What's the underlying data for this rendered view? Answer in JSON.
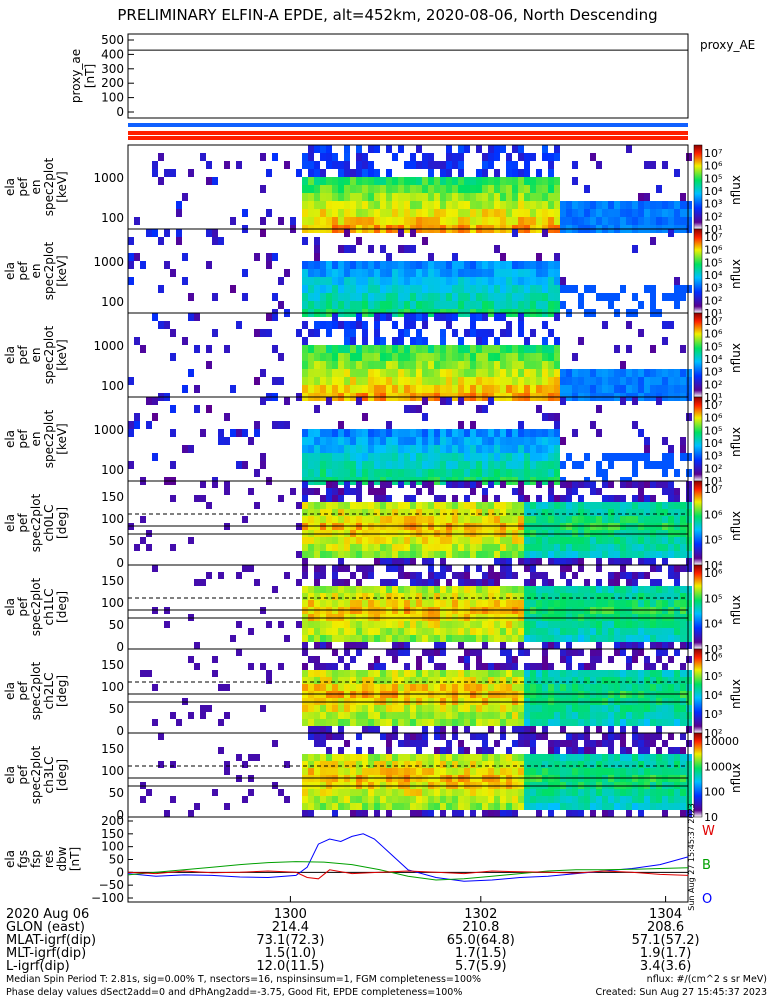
{
  "title": "PRELIMINARY ELFIN-A EPDE, alt=452km, 2020-08-06, North Descending",
  "chart_data": {
    "type": "heatmap",
    "panels": [
      {
        "id": "proxy-ae",
        "ylabel": [
          "proxy_ae",
          "[nT]"
        ],
        "yticks": [
          "500",
          "400",
          "300",
          "200",
          "100",
          "0"
        ],
        "right_label": "proxy_AE",
        "value": 430
      },
      {
        "id": "en-1",
        "ylabel": [
          "ela",
          "pef",
          "en",
          "spec2plot",
          "[keV]"
        ],
        "yticks": [
          "1000",
          "100"
        ],
        "cbar_ticks": [
          "10⁷",
          "10⁶",
          "10⁵",
          "10⁴",
          "10³",
          "10²",
          "10¹"
        ],
        "cbar_label": "nflux"
      },
      {
        "id": "en-2",
        "ylabel": [
          "ela",
          "pef",
          "en",
          "spec2plot",
          "[keV]"
        ],
        "yticks": [
          "1000",
          "100"
        ],
        "cbar_ticks": [
          "10⁷",
          "10⁶",
          "10⁵",
          "10⁴",
          "10³",
          "10²",
          "10¹"
        ],
        "cbar_label": "nflux"
      },
      {
        "id": "en-3",
        "ylabel": [
          "ela",
          "pef",
          "en",
          "spec2plot",
          "[keV]"
        ],
        "yticks": [
          "1000",
          "100"
        ],
        "cbar_ticks": [
          "10⁷",
          "10⁶",
          "10⁵",
          "10⁴",
          "10³",
          "10²",
          "10¹"
        ],
        "cbar_label": "nflux"
      },
      {
        "id": "en-4",
        "ylabel": [
          "ela",
          "pef",
          "en",
          "spec2plot",
          "[keV]"
        ],
        "yticks": [
          "1000",
          "100"
        ],
        "cbar_ticks": [
          "10⁷",
          "10⁶",
          "10⁵",
          "10⁴",
          "10³",
          "10²",
          "10¹"
        ],
        "cbar_label": "nflux"
      },
      {
        "id": "pa-0",
        "ylabel": [
          "ela",
          "pef",
          "spec2plot",
          "ch0LC",
          "[deg]"
        ],
        "yticks": [
          "150",
          "100",
          "50",
          "0"
        ],
        "cbar_ticks": [
          "10⁷",
          "10⁶",
          "10⁵",
          "10⁴"
        ],
        "cbar_label": "nflux"
      },
      {
        "id": "pa-1",
        "ylabel": [
          "ela",
          "pef",
          "spec2plot",
          "ch1LC",
          "[deg]"
        ],
        "yticks": [
          "150",
          "100",
          "50",
          "0"
        ],
        "cbar_ticks": [
          "10⁶",
          "10⁵",
          "10⁴",
          "10³"
        ],
        "cbar_label": "nflux"
      },
      {
        "id": "pa-2",
        "ylabel": [
          "ela",
          "pef",
          "spec2plot",
          "ch2LC",
          "[deg]"
        ],
        "yticks": [
          "150",
          "100",
          "50",
          "0"
        ],
        "cbar_ticks": [
          "10⁶",
          "10⁵",
          "10⁴",
          "10³",
          "10²"
        ],
        "cbar_label": "nflux"
      },
      {
        "id": "pa-3",
        "ylabel": [
          "ela",
          "pef",
          "spec2plot",
          "ch3LC",
          "[deg]"
        ],
        "yticks": [
          "150",
          "100",
          "50",
          "0"
        ],
        "cbar_ticks": [
          "10000",
          "1000",
          "100",
          "10"
        ],
        "cbar_label": "nflux"
      },
      {
        "id": "bfield",
        "ylabel": [
          "ela",
          "fgs",
          "fsp",
          "res",
          "dbw",
          "[nT]"
        ],
        "yticks": [
          "200",
          "150",
          "100",
          "50",
          "0",
          "−50",
          "−100"
        ],
        "legend": [
          {
            "name": "W",
            "color": "#e00000"
          },
          {
            "name": "B",
            "color": "#00a000"
          },
          {
            "name": "O",
            "color": "#0000ff"
          }
        ]
      }
    ],
    "x_labels": [
      "1300",
      "1302",
      "1304"
    ],
    "series": [
      {
        "name": "O",
        "color": "#0000ff",
        "x": [
          0,
          0.05,
          0.1,
          0.15,
          0.2,
          0.25,
          0.3,
          0.32,
          0.34,
          0.36,
          0.38,
          0.4,
          0.42,
          0.44,
          0.46,
          0.5,
          0.55,
          0.6,
          0.65,
          0.7,
          0.75,
          0.8,
          0.85,
          0.9,
          0.95,
          1.0
        ],
        "values": [
          -5,
          -15,
          -10,
          -12,
          -18,
          -20,
          -12,
          20,
          110,
          130,
          120,
          140,
          150,
          130,
          90,
          10,
          -20,
          -35,
          -30,
          -20,
          -15,
          -5,
          5,
          15,
          30,
          60
        ]
      },
      {
        "name": "B",
        "color": "#00a000",
        "x": [
          0,
          0.05,
          0.1,
          0.15,
          0.2,
          0.25,
          0.3,
          0.35,
          0.4,
          0.45,
          0.5,
          0.55,
          0.6,
          0.65,
          0.7,
          0.75,
          0.8,
          0.85,
          0.9,
          0.95,
          1.0
        ],
        "values": [
          -10,
          0,
          10,
          20,
          30,
          38,
          42,
          40,
          30,
          10,
          -15,
          -30,
          -25,
          -15,
          -5,
          5,
          10,
          10,
          12,
          15,
          18
        ]
      },
      {
        "name": "W",
        "color": "#e00000",
        "x": [
          0,
          0.05,
          0.1,
          0.15,
          0.2,
          0.25,
          0.3,
          0.32,
          0.34,
          0.36,
          0.4,
          0.45,
          0.5,
          0.55,
          0.6,
          0.65,
          0.7,
          0.75,
          0.8,
          0.85,
          0.9,
          0.95,
          1.0
        ],
        "values": [
          0,
          -5,
          5,
          -2,
          0,
          5,
          0,
          -20,
          -25,
          10,
          -5,
          0,
          5,
          0,
          -5,
          5,
          2,
          0,
          -3,
          5,
          0,
          -8,
          -12
        ]
      }
    ]
  },
  "footer": {
    "rows": [
      {
        "label": "2020 Aug 06",
        "vals": [
          "1300",
          "1302",
          "1304"
        ]
      },
      {
        "label": "GLON (east)",
        "vals": [
          "214.4",
          "210.8",
          "208.6"
        ]
      },
      {
        "label": "MLAT-igrf(dip)",
        "vals": [
          "73.1(72.3)",
          "65.0(64.8)",
          "57.1(57.2)"
        ]
      },
      {
        "label": "MLT-igrf(dip)",
        "vals": [
          "1.5(1.0)",
          "1.7(1.5)",
          "1.9(1.7)"
        ]
      },
      {
        "label": "L-igrf(dip)",
        "vals": [
          "12.0(11.5)",
          "5.7(5.9)",
          "3.4(3.6)"
        ]
      }
    ],
    "line1": "Median Spin Period T: 2.81s, sig=0.00% T, nsectors=16, nspinsinsum=1, FGM completeness=100%",
    "line2": "Phase delay values dSect2add=0 and dPhAng2add=-3.75, Good Fit, EPDE completeness=100%",
    "units": "nflux: #/(cm^2 s sr MeV)",
    "created": "Created: Sun Aug 27 15:45:37 2023",
    "side_stamp": "Sun Aug 27 15:45:37 2023"
  }
}
